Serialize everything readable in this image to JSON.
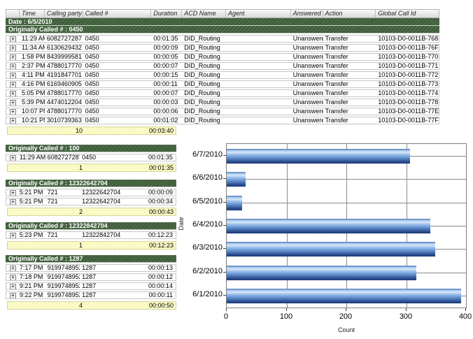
{
  "table": {
    "columns": [
      "Time",
      "Calling party #",
      "Called #",
      "Duration",
      "ACD Name",
      "Agent",
      "Answered",
      "Action",
      "Global Call Id"
    ],
    "date_band": "Date : 6/5/2010",
    "expand_icon": "+",
    "main_group": {
      "header": "Originally Called # : 0450",
      "rows": [
        {
          "time": "11:29 AM",
          "calling": "6082727287",
          "called": "0450",
          "duration": "00:01:35",
          "acd": "DID_Routing",
          "agent": "",
          "answered": "Unanswered",
          "action": "Transfer",
          "global_call_id": "10103-D0-0011B-768"
        },
        {
          "time": "11:34 AM",
          "calling": "6130629432",
          "called": "0450",
          "duration": "00:00:09",
          "acd": "DID_Routing",
          "agent": "",
          "answered": "Unanswered",
          "action": "Transfer",
          "global_call_id": "10103-D0-0011B-76F"
        },
        {
          "time": "1:58 PM",
          "calling": "8439999581",
          "called": "0450",
          "duration": "00:00:05",
          "acd": "DID_Routing",
          "agent": "",
          "answered": "Unanswered",
          "action": "Transfer",
          "global_call_id": "10103-D0-0011B-770"
        },
        {
          "time": "2:37 PM",
          "calling": "4788017770",
          "called": "0450",
          "duration": "00:00:07",
          "acd": "DID_Routing",
          "agent": "",
          "answered": "Unanswered",
          "action": "Transfer",
          "global_call_id": "10103-D0-0011B-771"
        },
        {
          "time": "4:11 PM",
          "calling": "4191847701",
          "called": "0450",
          "duration": "00:00:15",
          "acd": "DID_Routing",
          "agent": "",
          "answered": "Unanswered",
          "action": "Transfer",
          "global_call_id": "10103-D0-0011B-772"
        },
        {
          "time": "4:16 PM",
          "calling": "6169460905",
          "called": "0450",
          "duration": "00:00:11",
          "acd": "DID_Routing",
          "agent": "",
          "answered": "Unanswered",
          "action": "Transfer",
          "global_call_id": "10103-D0-0011B-773"
        },
        {
          "time": "5:05 PM",
          "calling": "4788017770",
          "called": "0450",
          "duration": "00:00:07",
          "acd": "DID_Routing",
          "agent": "",
          "answered": "Unanswered",
          "action": "Transfer",
          "global_call_id": "10103-D0-0011B-774"
        },
        {
          "time": "5:39 PM",
          "calling": "4474012204",
          "called": "0450",
          "duration": "00:00:03",
          "acd": "DID_Routing",
          "agent": "",
          "answered": "Unanswered",
          "action": "Transfer",
          "global_call_id": "10103-D0-0011B-778"
        },
        {
          "time": "10:07 PM",
          "calling": "4788017770",
          "called": "0450",
          "duration": "00:00:06",
          "acd": "DID_Routing",
          "agent": "",
          "answered": "Unanswered",
          "action": "Transfer",
          "global_call_id": "10103-D0-0011B-77E"
        },
        {
          "time": "10:21 PM",
          "calling": "3010739363",
          "called": "0450",
          "duration": "00:01:02",
          "acd": "DID_Routing",
          "agent": "",
          "answered": "Unanswered",
          "action": "Transfer",
          "global_call_id": "10103-D0-0011B-77F"
        }
      ],
      "summary": {
        "count": "10",
        "total_duration": "00:03:40"
      }
    },
    "side_groups": [
      {
        "header": "Originally Called # : 100",
        "rows": [
          {
            "time": "11:29 AM",
            "calling": "6082727287",
            "called": "0450",
            "duration": "00:01:35"
          }
        ],
        "summary": {
          "count": "1",
          "total_duration": "00:01:35"
        }
      },
      {
        "header": "Originally Called # : 12322642704",
        "rows": [
          {
            "time": "5:21 PM",
            "calling": "721",
            "called": "12322642704",
            "duration": "00:00:09"
          },
          {
            "time": "5:21 PM",
            "calling": "721",
            "called": "12322642704",
            "duration": "00:00:34"
          }
        ],
        "summary": {
          "count": "2",
          "total_duration": "00:00:43"
        }
      },
      {
        "header": "Originally Called # : 12322842704",
        "rows": [
          {
            "time": "5:23 PM",
            "calling": "721",
            "called": "12322842704",
            "duration": "00:12:23"
          }
        ],
        "summary": {
          "count": "1",
          "total_duration": "00:12:23"
        }
      },
      {
        "header": "Originally Called # : 1287",
        "rows": [
          {
            "time": "7:17 PM",
            "calling": "9199748952",
            "called": "1287",
            "duration": "00:00:13"
          },
          {
            "time": "7:18 PM",
            "calling": "9199748952",
            "called": "1287",
            "duration": "00:00:12"
          },
          {
            "time": "9:21 PM",
            "calling": "9199748952",
            "called": "1287",
            "duration": "00:00:14"
          },
          {
            "time": "9:22 PM",
            "calling": "9199748952",
            "called": "1287",
            "duration": "00:00:11"
          }
        ],
        "summary": {
          "count": "4",
          "total_duration": "00:00:50"
        }
      }
    ]
  },
  "chart_data": {
    "type": "bar",
    "orientation": "horizontal",
    "categories": [
      "6/7/2010",
      "6/6/2010",
      "6/5/2010",
      "6/4/2010",
      "6/3/2010",
      "6/2/2010",
      "6/1/2010"
    ],
    "values": [
      307,
      32,
      26,
      340,
      348,
      317,
      392
    ],
    "title": "",
    "xlabel": "Count",
    "ylabel": "Date",
    "xlim": [
      0,
      400
    ],
    "xticks": [
      0,
      100,
      200,
      300,
      400
    ],
    "grid": true,
    "legend": "none"
  },
  "colors": {
    "group_band_green": "#3e5a3a",
    "summary_yellow": "#fafac0",
    "bar_blue": "#5b8bd0",
    "gridline_gray": "#8c8c8c"
  }
}
